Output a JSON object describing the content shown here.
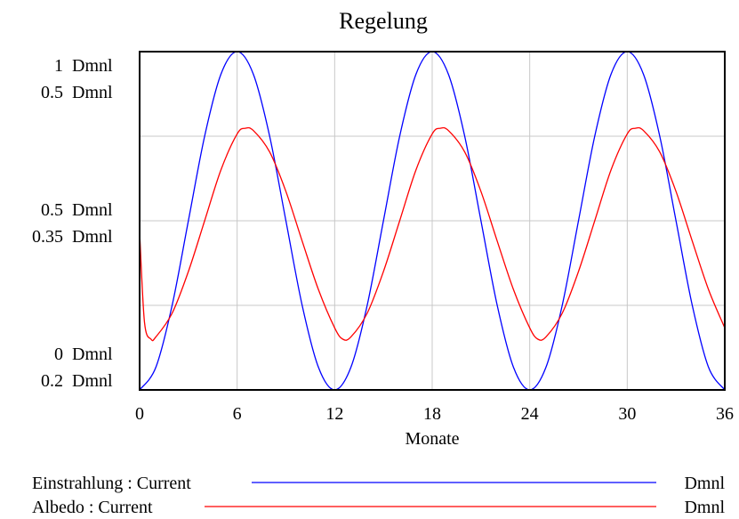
{
  "chart_data": {
    "type": "line",
    "title": "Regelung",
    "xlabel": "Monate",
    "xlim": [
      0,
      36
    ],
    "x_ticks": [
      "0",
      "6",
      "12",
      "18",
      "24",
      "30",
      "36"
    ],
    "grid": true,
    "y_axes": [
      {
        "series": "Einstrahlung",
        "ylim": [
          0,
          1
        ],
        "tick_top": "1",
        "tick_mid": "0.5",
        "tick_bottom": "0",
        "unit": "Dmnl"
      },
      {
        "series": "Albedo",
        "ylim": [
          0.2,
          0.5
        ],
        "tick_top": "0.5",
        "tick_mid": "0.35",
        "tick_bottom": "0.2",
        "unit": "Dmnl"
      }
    ],
    "series": [
      {
        "name": "Einstrahlung",
        "legend_label": "Einstrahlung : Current",
        "unit": "Dmnl",
        "color": "#0000ff",
        "x": [
          0,
          1,
          2,
          3,
          4,
          5,
          6,
          7,
          8,
          9,
          10,
          11,
          12,
          13,
          14,
          15,
          16,
          17,
          18,
          19,
          20,
          21,
          22,
          23,
          24,
          25,
          26,
          27,
          28,
          29,
          30,
          31,
          32,
          33,
          34,
          35,
          36
        ],
        "values": [
          0,
          0.067,
          0.25,
          0.5,
          0.75,
          0.933,
          1,
          0.933,
          0.75,
          0.5,
          0.25,
          0.067,
          0,
          0.067,
          0.25,
          0.5,
          0.75,
          0.933,
          1,
          0.933,
          0.75,
          0.5,
          0.25,
          0.067,
          0,
          0.067,
          0.25,
          0.5,
          0.75,
          0.933,
          1,
          0.933,
          0.75,
          0.5,
          0.25,
          0.067,
          0
        ]
      },
      {
        "name": "Albedo",
        "legend_label": "Albedo : Current",
        "unit": "Dmnl",
        "color": "#ff0000",
        "x": [
          0,
          0.3,
          0.7,
          1,
          2,
          3,
          4,
          5,
          6,
          6.5,
          7,
          8,
          9,
          10,
          11,
          12,
          12.5,
          13,
          14,
          15,
          16,
          17,
          18,
          18.5,
          19,
          20,
          21,
          22,
          23,
          24,
          24.5,
          25,
          26,
          27,
          28,
          29,
          30,
          30.5,
          31,
          32,
          33,
          34,
          35,
          36
        ],
        "values": [
          0.34,
          0.26,
          0.245,
          0.247,
          0.268,
          0.305,
          0.35,
          0.395,
          0.427,
          0.432,
          0.43,
          0.411,
          0.376,
          0.332,
          0.289,
          0.255,
          0.245,
          0.247,
          0.268,
          0.305,
          0.35,
          0.395,
          0.427,
          0.432,
          0.43,
          0.411,
          0.376,
          0.332,
          0.289,
          0.255,
          0.245,
          0.247,
          0.268,
          0.305,
          0.35,
          0.395,
          0.427,
          0.432,
          0.43,
          0.411,
          0.376,
          0.332,
          0.289,
          0.255
        ]
      }
    ]
  }
}
